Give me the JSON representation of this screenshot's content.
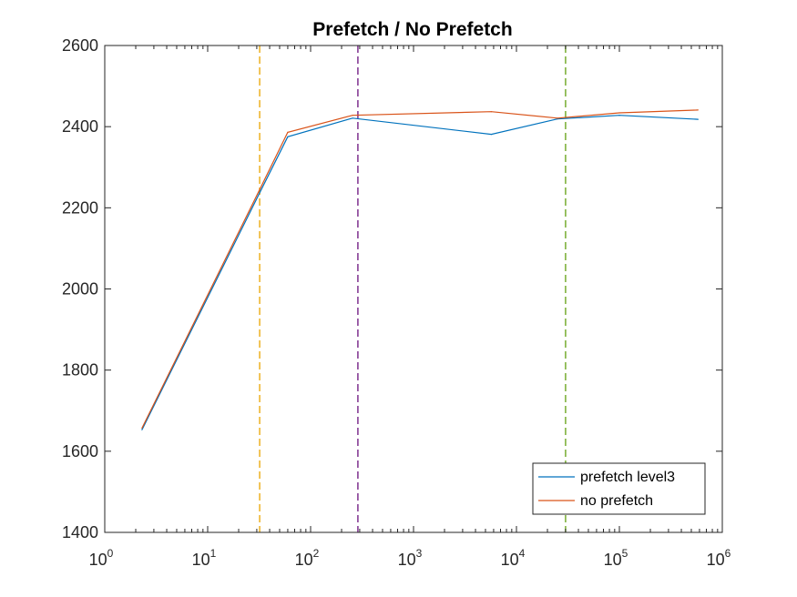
{
  "chart_data": {
    "type": "line",
    "title": "Prefetch / No Prefetch",
    "xlabel": "",
    "ylabel": "",
    "xscale": "log",
    "xlim": [
      1,
      1000000
    ],
    "ylim": [
      1400,
      2600
    ],
    "x_ticks": [
      {
        "base": "10",
        "exp": "0",
        "value": 1
      },
      {
        "base": "10",
        "exp": "1",
        "value": 10
      },
      {
        "base": "10",
        "exp": "2",
        "value": 100
      },
      {
        "base": "10",
        "exp": "3",
        "value": 1000
      },
      {
        "base": "10",
        "exp": "4",
        "value": 10000
      },
      {
        "base": "10",
        "exp": "5",
        "value": 100000
      },
      {
        "base": "10",
        "exp": "6",
        "value": 1000000
      }
    ],
    "y_ticks": [
      "1400",
      "1600",
      "1800",
      "2000",
      "2200",
      "2400",
      "2600"
    ],
    "grid": false,
    "legend_position": "bottom-right",
    "series": [
      {
        "name": "prefetch level3",
        "color": "#0072BD",
        "x": [
          2.3,
          32,
          60,
          256,
          5700,
          25000,
          100000,
          580000
        ],
        "y": [
          1653,
          2237,
          2375,
          2421,
          2381,
          2419,
          2428,
          2418
        ]
      },
      {
        "name": "no prefetch",
        "color": "#D95319",
        "x": [
          2.3,
          32,
          60,
          256,
          5700,
          25000,
          100000,
          580000
        ],
        "y": [
          1657,
          2245,
          2386,
          2428,
          2437,
          2421,
          2434,
          2441
        ]
      }
    ],
    "reference_lines": [
      {
        "x": 32,
        "color": "#EDB120",
        "style": "dashed"
      },
      {
        "x": 288,
        "color": "#7E2F8E",
        "style": "dashed"
      },
      {
        "x": 30000,
        "color": "#77AC30",
        "style": "dashed"
      }
    ]
  }
}
